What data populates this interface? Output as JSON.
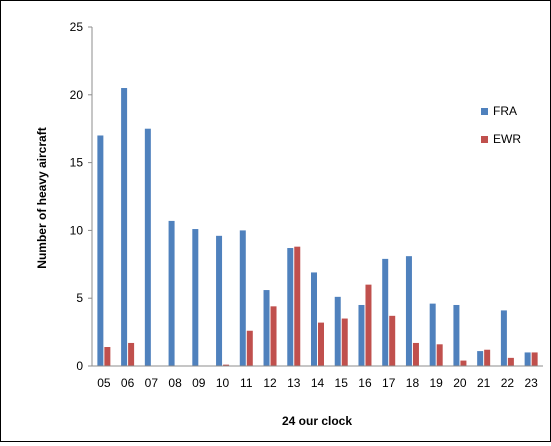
{
  "chart_data": {
    "type": "bar",
    "title": "",
    "xlabel": "24 our clock",
    "ylabel": "Number of heavy aircraft",
    "ylim": [
      0,
      25
    ],
    "yticks": [
      "0",
      "5",
      "10",
      "15",
      "20",
      "25"
    ],
    "grid": false,
    "legend_position": "right",
    "categories": [
      "05",
      "06",
      "07",
      "08",
      "09",
      "10",
      "11",
      "12",
      "13",
      "14",
      "15",
      "16",
      "17",
      "18",
      "19",
      "20",
      "21",
      "22",
      "23"
    ],
    "series": [
      {
        "name": "FRA",
        "color": "#4F81BD",
        "values": [
          17.0,
          20.5,
          17.5,
          10.7,
          10.1,
          9.6,
          10.0,
          5.6,
          8.7,
          6.9,
          5.1,
          4.5,
          7.9,
          8.1,
          4.6,
          4.5,
          1.1,
          4.1,
          1.0
        ]
      },
      {
        "name": "EWR",
        "color": "#C0504D",
        "values": [
          1.4,
          1.7,
          0,
          0,
          0,
          0.1,
          2.6,
          4.4,
          8.8,
          3.2,
          3.5,
          6.0,
          3.7,
          1.7,
          1.6,
          0.4,
          1.2,
          0.6,
          1.0
        ]
      }
    ]
  }
}
